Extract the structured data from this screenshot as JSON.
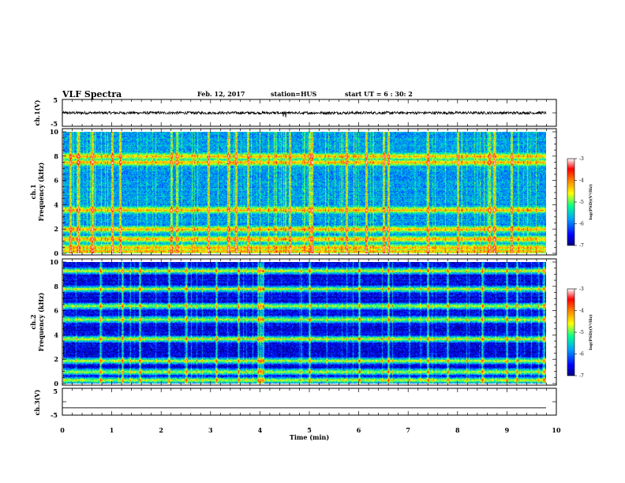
{
  "header": {
    "title": "VLF Spectra",
    "date": "Feb. 12, 2017",
    "station": "station=HUS",
    "start": "start  UT =  6 : 30: 2"
  },
  "chart_data": [
    {
      "type": "line",
      "panel": "ch1-waveform",
      "ylabel": "ch.1(V)",
      "ylim": [
        -5,
        5
      ],
      "yticks": [
        "5",
        "-5"
      ],
      "xlim": [
        0,
        10
      ],
      "baseline": 0,
      "amplitude": "noise about 0 V, roughly ±0.5 V with sporadic spikes to about -1 V near 4.4–4.8 min"
    },
    {
      "type": "heatmap",
      "panel": "ch1-spectrogram",
      "ylabel": "ch.1\nFrequency (kHz)",
      "ylabel_line1": "ch.1",
      "ylabel_line2": "Frequency (kHz)",
      "ylim": [
        0,
        10
      ],
      "yticks": [
        "0",
        "2",
        "4",
        "6",
        "8",
        "10"
      ],
      "xlim": [
        0,
        9.8
      ],
      "colorbar": {
        "label": "log(PSD)(V²/Hz)",
        "range": [
          -7,
          -3
        ],
        "ticks": [
          "-3",
          "-4",
          "-5",
          "-6",
          "-7"
        ],
        "colormap": [
          "#000080",
          "#0000ff",
          "#00a0ff",
          "#00ff90",
          "#ffff00",
          "#ff8000",
          "#ff0000",
          "#ffffff"
        ]
      },
      "background_level": -5.8,
      "bands_khz": [
        0.2,
        0.5,
        1.2,
        2.0,
        3.6,
        7.5,
        8.0
      ],
      "impulsive_times_min": [
        0.15,
        0.3,
        0.6,
        1.0,
        1.15,
        2.2,
        2.3,
        2.95,
        3.35,
        3.5,
        3.75,
        4.6,
        5.0,
        5.05,
        5.75,
        6.15,
        6.5,
        6.6,
        7.4,
        8.0,
        8.65,
        8.75,
        9.1
      ]
    },
    {
      "type": "heatmap",
      "panel": "ch2-spectrogram",
      "ylabel": "ch.2\nFrequency (kHz)",
      "ylabel_line1": "ch.2",
      "ylabel_line2": "Frequency (kHz)",
      "ylim": [
        0,
        10
      ],
      "yticks": [
        "0",
        "2",
        "4",
        "6",
        "8",
        "10"
      ],
      "xlim": [
        0,
        9.8
      ],
      "colorbar": {
        "label": "log(PSD)(V²/Hz)",
        "range": [
          -7,
          -3
        ],
        "ticks": [
          "-3",
          "-4",
          "-5",
          "-6",
          "-7"
        ]
      },
      "background_level": -6.6,
      "bands_khz": [
        0.3,
        1.0,
        1.9,
        3.7,
        5.3,
        6.4,
        7.8,
        9.3
      ],
      "impulsive_times_min": [
        0.75,
        1.2,
        1.55,
        2.15,
        2.5,
        3.1,
        3.55,
        3.95,
        4.0,
        4.05,
        5.0,
        6.0,
        6.6,
        7.4,
        7.8,
        8.5,
        9.0,
        9.2,
        9.75
      ]
    },
    {
      "type": "line",
      "panel": "ch3-waveform",
      "ylabel": "ch.3(V)",
      "ylim": [
        -5,
        5
      ],
      "yticks": [
        "5",
        "-5"
      ],
      "xlim": [
        0,
        10
      ],
      "baseline": -2.3,
      "xlabel": "Time  (min)",
      "xticks": [
        "0",
        "1",
        "2",
        "3",
        "4",
        "5",
        "6",
        "7",
        "8",
        "9",
        "10"
      ]
    }
  ]
}
